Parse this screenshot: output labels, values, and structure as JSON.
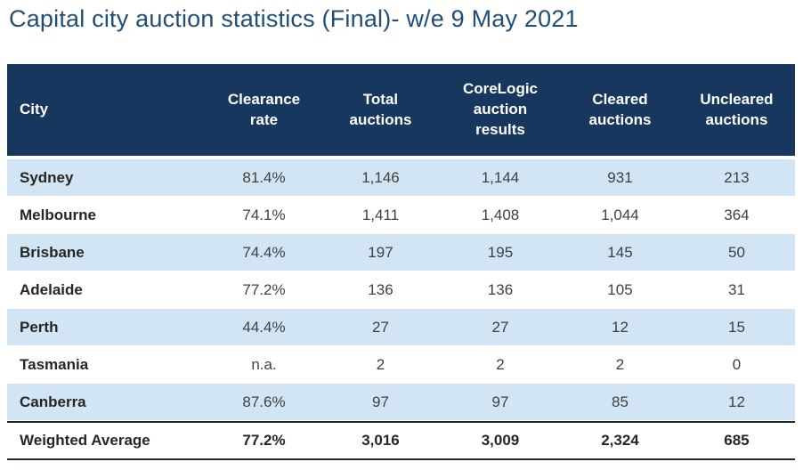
{
  "title": "Capital city auction statistics (Final)- w/e 9 May 2021",
  "table": {
    "columns": [
      "City",
      "Clearance rate",
      "Total auctions",
      "CoreLogic auction results",
      "Cleared auctions",
      "Uncleared auctions"
    ],
    "rows": [
      [
        "Sydney",
        "81.4%",
        "1,146",
        "1,144",
        "931",
        "213"
      ],
      [
        "Melbourne",
        "74.1%",
        "1,411",
        "1,408",
        "1,044",
        "364"
      ],
      [
        "Brisbane",
        "74.4%",
        "197",
        "195",
        "145",
        "50"
      ],
      [
        "Adelaide",
        "77.2%",
        "136",
        "136",
        "105",
        "31"
      ],
      [
        "Perth",
        "44.4%",
        "27",
        "27",
        "12",
        "15"
      ],
      [
        "Tasmania",
        "n.a.",
        "2",
        "2",
        "2",
        "0"
      ],
      [
        "Canberra",
        "87.6%",
        "97",
        "97",
        "85",
        "12"
      ]
    ],
    "footer_row": [
      "Weighted Average",
      "77.2%",
      "3,016",
      "3,009",
      "2,324",
      "685"
    ]
  },
  "colors": {
    "title_text": "#1F4E79",
    "header_bg": "#17375E",
    "header_text": "#FFFFFF",
    "row_alt_bg": "#D1E5F4",
    "body_text": "#404040",
    "strong_text": "#262626",
    "footer_border": "#1A2733"
  }
}
